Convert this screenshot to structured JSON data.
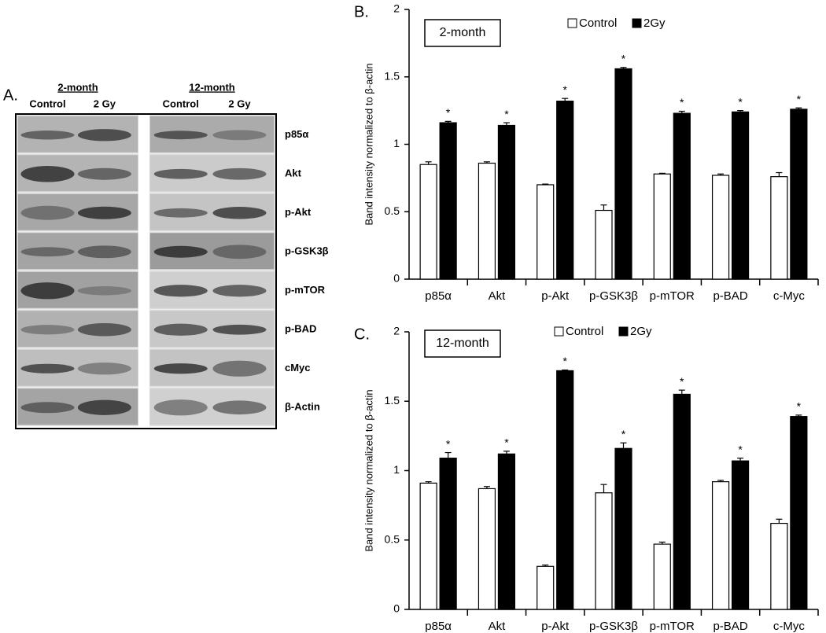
{
  "panel_a": {
    "label": "A.",
    "groups": [
      {
        "title": "2-month",
        "lanes": [
          "Control",
          "2 Gy"
        ]
      },
      {
        "title": "12-month",
        "lanes": [
          "Control",
          "2 Gy"
        ]
      }
    ],
    "rows": [
      "p85α",
      "Akt",
      "p-Akt",
      "p-GSK3β",
      "p-mTOR",
      "p-BAD",
      "cMyc",
      "β-Actin"
    ]
  },
  "chart_data": [
    {
      "type": "bar",
      "panel_label": "B.",
      "title": "2-month",
      "y_label": "Band intensity normalized to β-actin",
      "categories": [
        "p85α",
        "Akt",
        "p-Akt",
        "p-GSK3β",
        "p-mTOR",
        "p-BAD",
        "c-Myc"
      ],
      "series": [
        {
          "name": "Control",
          "color": "#ffffff",
          "values": [
            0.85,
            0.86,
            0.7,
            0.51,
            0.78,
            0.77,
            0.76
          ],
          "errors": [
            0.02,
            0.01,
            0.005,
            0.04,
            0.005,
            0.01,
            0.03
          ]
        },
        {
          "name": "2Gy",
          "color": "#000000",
          "values": [
            1.16,
            1.14,
            1.32,
            1.56,
            1.23,
            1.24,
            1.26
          ],
          "errors": [
            0.01,
            0.02,
            0.02,
            0.01,
            0.015,
            0.01,
            0.01
          ],
          "markers": [
            "*",
            "*",
            "*",
            "*",
            "*",
            "*",
            "*"
          ]
        }
      ],
      "ylim": [
        0,
        2
      ],
      "yticks": [
        0,
        0.5,
        1,
        1.5,
        2
      ]
    },
    {
      "type": "bar",
      "panel_label": "C.",
      "title": "12-month",
      "y_label": "Band intensity normalized to β-actin",
      "categories": [
        "p85α",
        "Akt",
        "p-Akt",
        "p-GSK3β",
        "p-mTOR",
        "p-BAD",
        "c-Myc"
      ],
      "series": [
        {
          "name": "Control",
          "color": "#ffffff",
          "values": [
            0.91,
            0.87,
            0.31,
            0.84,
            0.47,
            0.92,
            0.62
          ],
          "errors": [
            0.01,
            0.015,
            0.01,
            0.06,
            0.015,
            0.01,
            0.03
          ]
        },
        {
          "name": "2Gy",
          "color": "#000000",
          "values": [
            1.09,
            1.12,
            1.72,
            1.16,
            1.55,
            1.07,
            1.39
          ],
          "errors": [
            0.04,
            0.02,
            0.005,
            0.04,
            0.03,
            0.02,
            0.01
          ],
          "markers": [
            "*",
            "*",
            "*",
            "*",
            "*",
            "*",
            "*"
          ]
        }
      ],
      "ylim": [
        0,
        2
      ],
      "yticks": [
        0,
        0.5,
        1,
        1.5,
        2
      ]
    }
  ]
}
